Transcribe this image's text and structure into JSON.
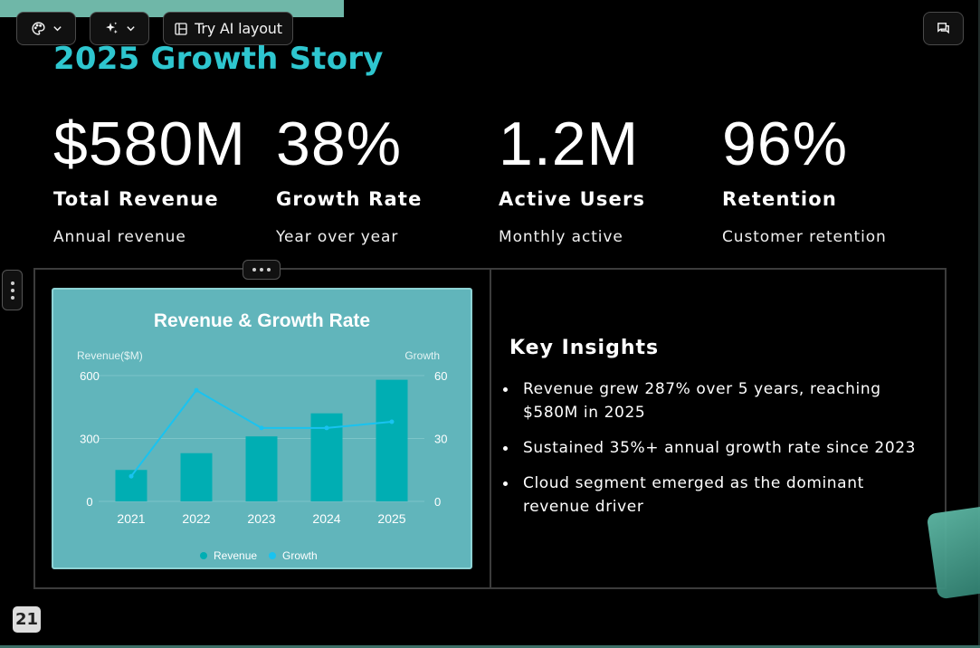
{
  "toolbar": {
    "theme_icon": "palette-icon",
    "magic_icon": "sparkle-icon",
    "ai_layout_label": "Try AI layout",
    "comment_icon": "comment-icon"
  },
  "slide": {
    "title": "2025 Growth Story",
    "stats": [
      {
        "value": "$580M",
        "label": "Total Revenue",
        "sub": "Annual revenue"
      },
      {
        "value": "38%",
        "label": "Growth Rate",
        "sub": "Year over year"
      },
      {
        "value": "1.2M",
        "label": "Active Users",
        "sub": "Monthly active"
      },
      {
        "value": "96%",
        "label": "Retention",
        "sub": "Customer retention"
      }
    ],
    "insights": {
      "heading": "Key Insights",
      "items": [
        "Revenue grew 287% over 5 years, reaching $580M in 2025",
        "Sustained 35%+ annual growth rate since 2023",
        "Cloud segment emerged as the dominant revenue driver"
      ]
    },
    "page_number": "21"
  },
  "colors": {
    "title": "#2ec6cf",
    "bar": "#00aeb3",
    "line": "#19c3f0",
    "card_bg": "#61b5bb"
  },
  "chart_data": {
    "type": "bar",
    "title": "Revenue & Growth Rate",
    "categories": [
      "2021",
      "2022",
      "2023",
      "2024",
      "2025"
    ],
    "series": [
      {
        "name": "Revenue",
        "type": "bar",
        "axis": "left",
        "values": [
          150,
          230,
          310,
          420,
          580
        ]
      },
      {
        "name": "Growth",
        "type": "line",
        "axis": "right",
        "values": [
          12,
          53,
          35,
          35,
          38
        ]
      }
    ],
    "ylabel": "Revenue($M)",
    "y2label": "Growth",
    "ylim": [
      0,
      600
    ],
    "y2lim": [
      0,
      60
    ],
    "yticks": [
      "0",
      "300",
      "600"
    ],
    "y2ticks": [
      "0",
      "30",
      "60"
    ],
    "legend_position": "bottom",
    "grid": true
  }
}
